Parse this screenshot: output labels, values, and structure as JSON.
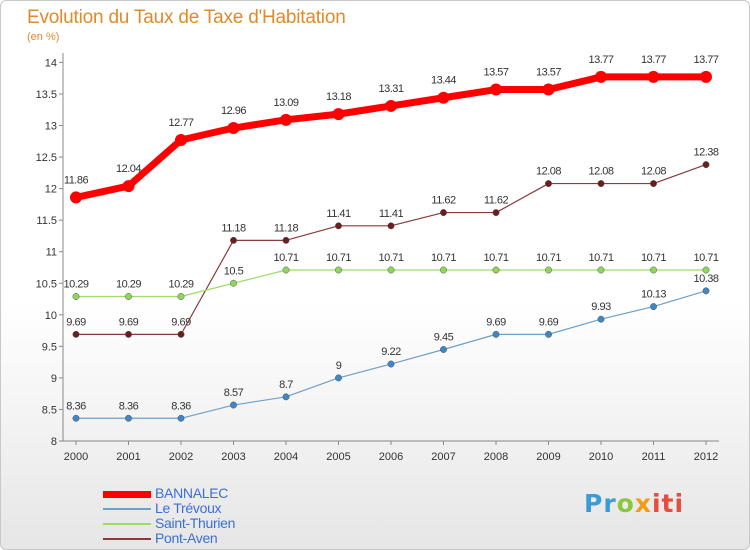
{
  "title": "Evolution du Taux de Taxe d'Habitation",
  "subtitle": "(en %)",
  "logo": {
    "p1": "Pr",
    "p2": "o",
    "p3": "x",
    "p4": "iti"
  },
  "chart_data": {
    "type": "line",
    "x": [
      "2000",
      "2001",
      "2002",
      "2003",
      "2004",
      "2005",
      "2006",
      "2007",
      "2008",
      "2009",
      "2010",
      "2011",
      "2012"
    ],
    "ylim": [
      8,
      14
    ],
    "yticks": [
      "8",
      "8.5",
      "9",
      "9.5",
      "10",
      "10.5",
      "11",
      "11.5",
      "12",
      "12.5",
      "13",
      "13.5",
      "14"
    ],
    "grid": false,
    "legend_position": "bottom-left",
    "series": [
      {
        "name": "BANNALEC",
        "color": "#ff0000",
        "values": [
          11.86,
          12.04,
          12.77,
          12.96,
          13.09,
          13.18,
          13.31,
          13.44,
          13.57,
          13.57,
          13.77,
          13.77,
          13.77
        ],
        "labels": [
          "11.86",
          "12.04",
          "12.77",
          "12.96",
          "13.09",
          "13.18",
          "13.31",
          "13.44",
          "13.57",
          "13.57",
          "13.77",
          "13.77",
          "13.77"
        ]
      },
      {
        "name": "Le Trévoux",
        "color": "#6fa0c8",
        "values": [
          8.36,
          8.36,
          8.36,
          8.57,
          8.7,
          9,
          9.22,
          9.45,
          9.69,
          9.69,
          9.93,
          10.13,
          10.38
        ],
        "labels": [
          "8.36",
          "8.36",
          "8.36",
          "8.57",
          "8.7",
          "9",
          "9.22",
          "9.45",
          "9.69",
          "9.69",
          "9.93",
          "10.13",
          "10.38"
        ]
      },
      {
        "name": "Saint-Thurien",
        "color": "#9edb6a",
        "values": [
          10.29,
          10.29,
          10.29,
          10.5,
          10.71,
          10.71,
          10.71,
          10.71,
          10.71,
          10.71,
          10.71,
          10.71,
          10.71
        ],
        "labels": [
          "10.29",
          "10.29",
          "10.29",
          "10.5",
          "10.71",
          "10.71",
          "10.71",
          "10.71",
          "10.71",
          "10.71",
          "10.71",
          "10.71",
          "10.71"
        ]
      },
      {
        "name": "Pont-Aven",
        "color": "#8a3a3a",
        "values": [
          9.69,
          9.69,
          9.69,
          11.18,
          11.18,
          11.41,
          11.41,
          11.62,
          11.62,
          12.08,
          12.08,
          12.08,
          12.38
        ],
        "labels": [
          "9.69",
          "9.69",
          "9.69",
          "11.18",
          "11.18",
          "11.41",
          "11.41",
          "11.62",
          "11.62",
          "12.08",
          "12.08",
          "12.08",
          "12.38"
        ]
      }
    ]
  }
}
